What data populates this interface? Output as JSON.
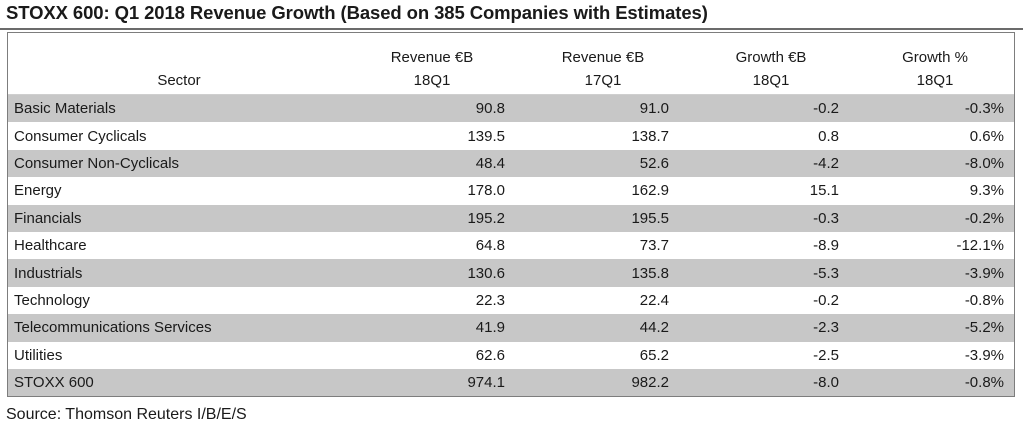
{
  "title": "STOXX 600: Q1 2018 Revenue Growth (Based on 385 Companies with Estimates)",
  "source": "Source: Thomson Reuters I/B/E/S",
  "colors": {
    "shade": "#c7c7c7",
    "rule": "#6b6b6b"
  },
  "chart_data": {
    "type": "table",
    "title": "STOXX 600: Q1 2018 Revenue Growth (Based on 385 Companies with Estimates)",
    "columns": [
      {
        "label": "Sector",
        "sub": ""
      },
      {
        "label": "Revenue €B",
        "sub": "18Q1"
      },
      {
        "label": "Revenue €B",
        "sub": "17Q1"
      },
      {
        "label": "Growth €B",
        "sub": "18Q1"
      },
      {
        "label": "Growth %",
        "sub": "18Q1"
      }
    ],
    "rows": [
      {
        "sector": "Basic Materials",
        "rev18": "90.8",
        "rev17": "91.0",
        "growth_b": "-0.2",
        "growth_pct": "-0.3%"
      },
      {
        "sector": "Consumer Cyclicals",
        "rev18": "139.5",
        "rev17": "138.7",
        "growth_b": "0.8",
        "growth_pct": "0.6%"
      },
      {
        "sector": "Consumer Non-Cyclicals",
        "rev18": "48.4",
        "rev17": "52.6",
        "growth_b": "-4.2",
        "growth_pct": "-8.0%"
      },
      {
        "sector": "Energy",
        "rev18": "178.0",
        "rev17": "162.9",
        "growth_b": "15.1",
        "growth_pct": "9.3%"
      },
      {
        "sector": "Financials",
        "rev18": "195.2",
        "rev17": "195.5",
        "growth_b": "-0.3",
        "growth_pct": "-0.2%"
      },
      {
        "sector": "Healthcare",
        "rev18": "64.8",
        "rev17": "73.7",
        "growth_b": "-8.9",
        "growth_pct": "-12.1%"
      },
      {
        "sector": "Industrials",
        "rev18": "130.6",
        "rev17": "135.8",
        "growth_b": "-5.3",
        "growth_pct": "-3.9%"
      },
      {
        "sector": "Technology",
        "rev18": "22.3",
        "rev17": "22.4",
        "growth_b": "-0.2",
        "growth_pct": "-0.8%"
      },
      {
        "sector": "Telecommunications Services",
        "rev18": "41.9",
        "rev17": "44.2",
        "growth_b": "-2.3",
        "growth_pct": "-5.2%"
      },
      {
        "sector": "Utilities",
        "rev18": "62.6",
        "rev17": "65.2",
        "growth_b": "-2.5",
        "growth_pct": "-3.9%"
      }
    ],
    "total": {
      "sector": "STOXX 600",
      "rev18": "974.1",
      "rev17": "982.2",
      "growth_b": "-8.0",
      "growth_pct": "-0.8%"
    }
  }
}
